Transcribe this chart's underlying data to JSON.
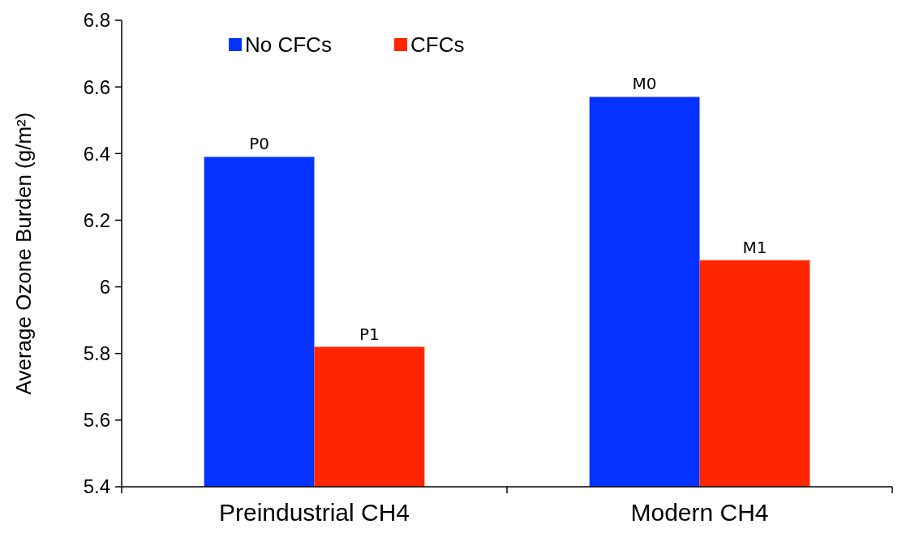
{
  "chart_data": {
    "type": "bar",
    "ylabel": "Average Ozone Burden (g/m²)",
    "categories": [
      "Preindustrial CH4",
      "Modern CH4"
    ],
    "series": [
      {
        "name": "No CFCs",
        "color": "#0433ff",
        "values": [
          6.39,
          6.57
        ],
        "value_labels": [
          "P0",
          "M0"
        ]
      },
      {
        "name": "CFCs",
        "color": "#ff2600",
        "values": [
          5.82,
          6.08
        ],
        "value_labels": [
          "P1",
          "M1"
        ]
      }
    ],
    "ylim": [
      5.4,
      6.8
    ],
    "yticks": [
      5.4,
      5.6,
      5.8,
      6,
      6.2,
      6.4,
      6.6,
      6.8
    ],
    "grid": false,
    "legend": "top left"
  }
}
